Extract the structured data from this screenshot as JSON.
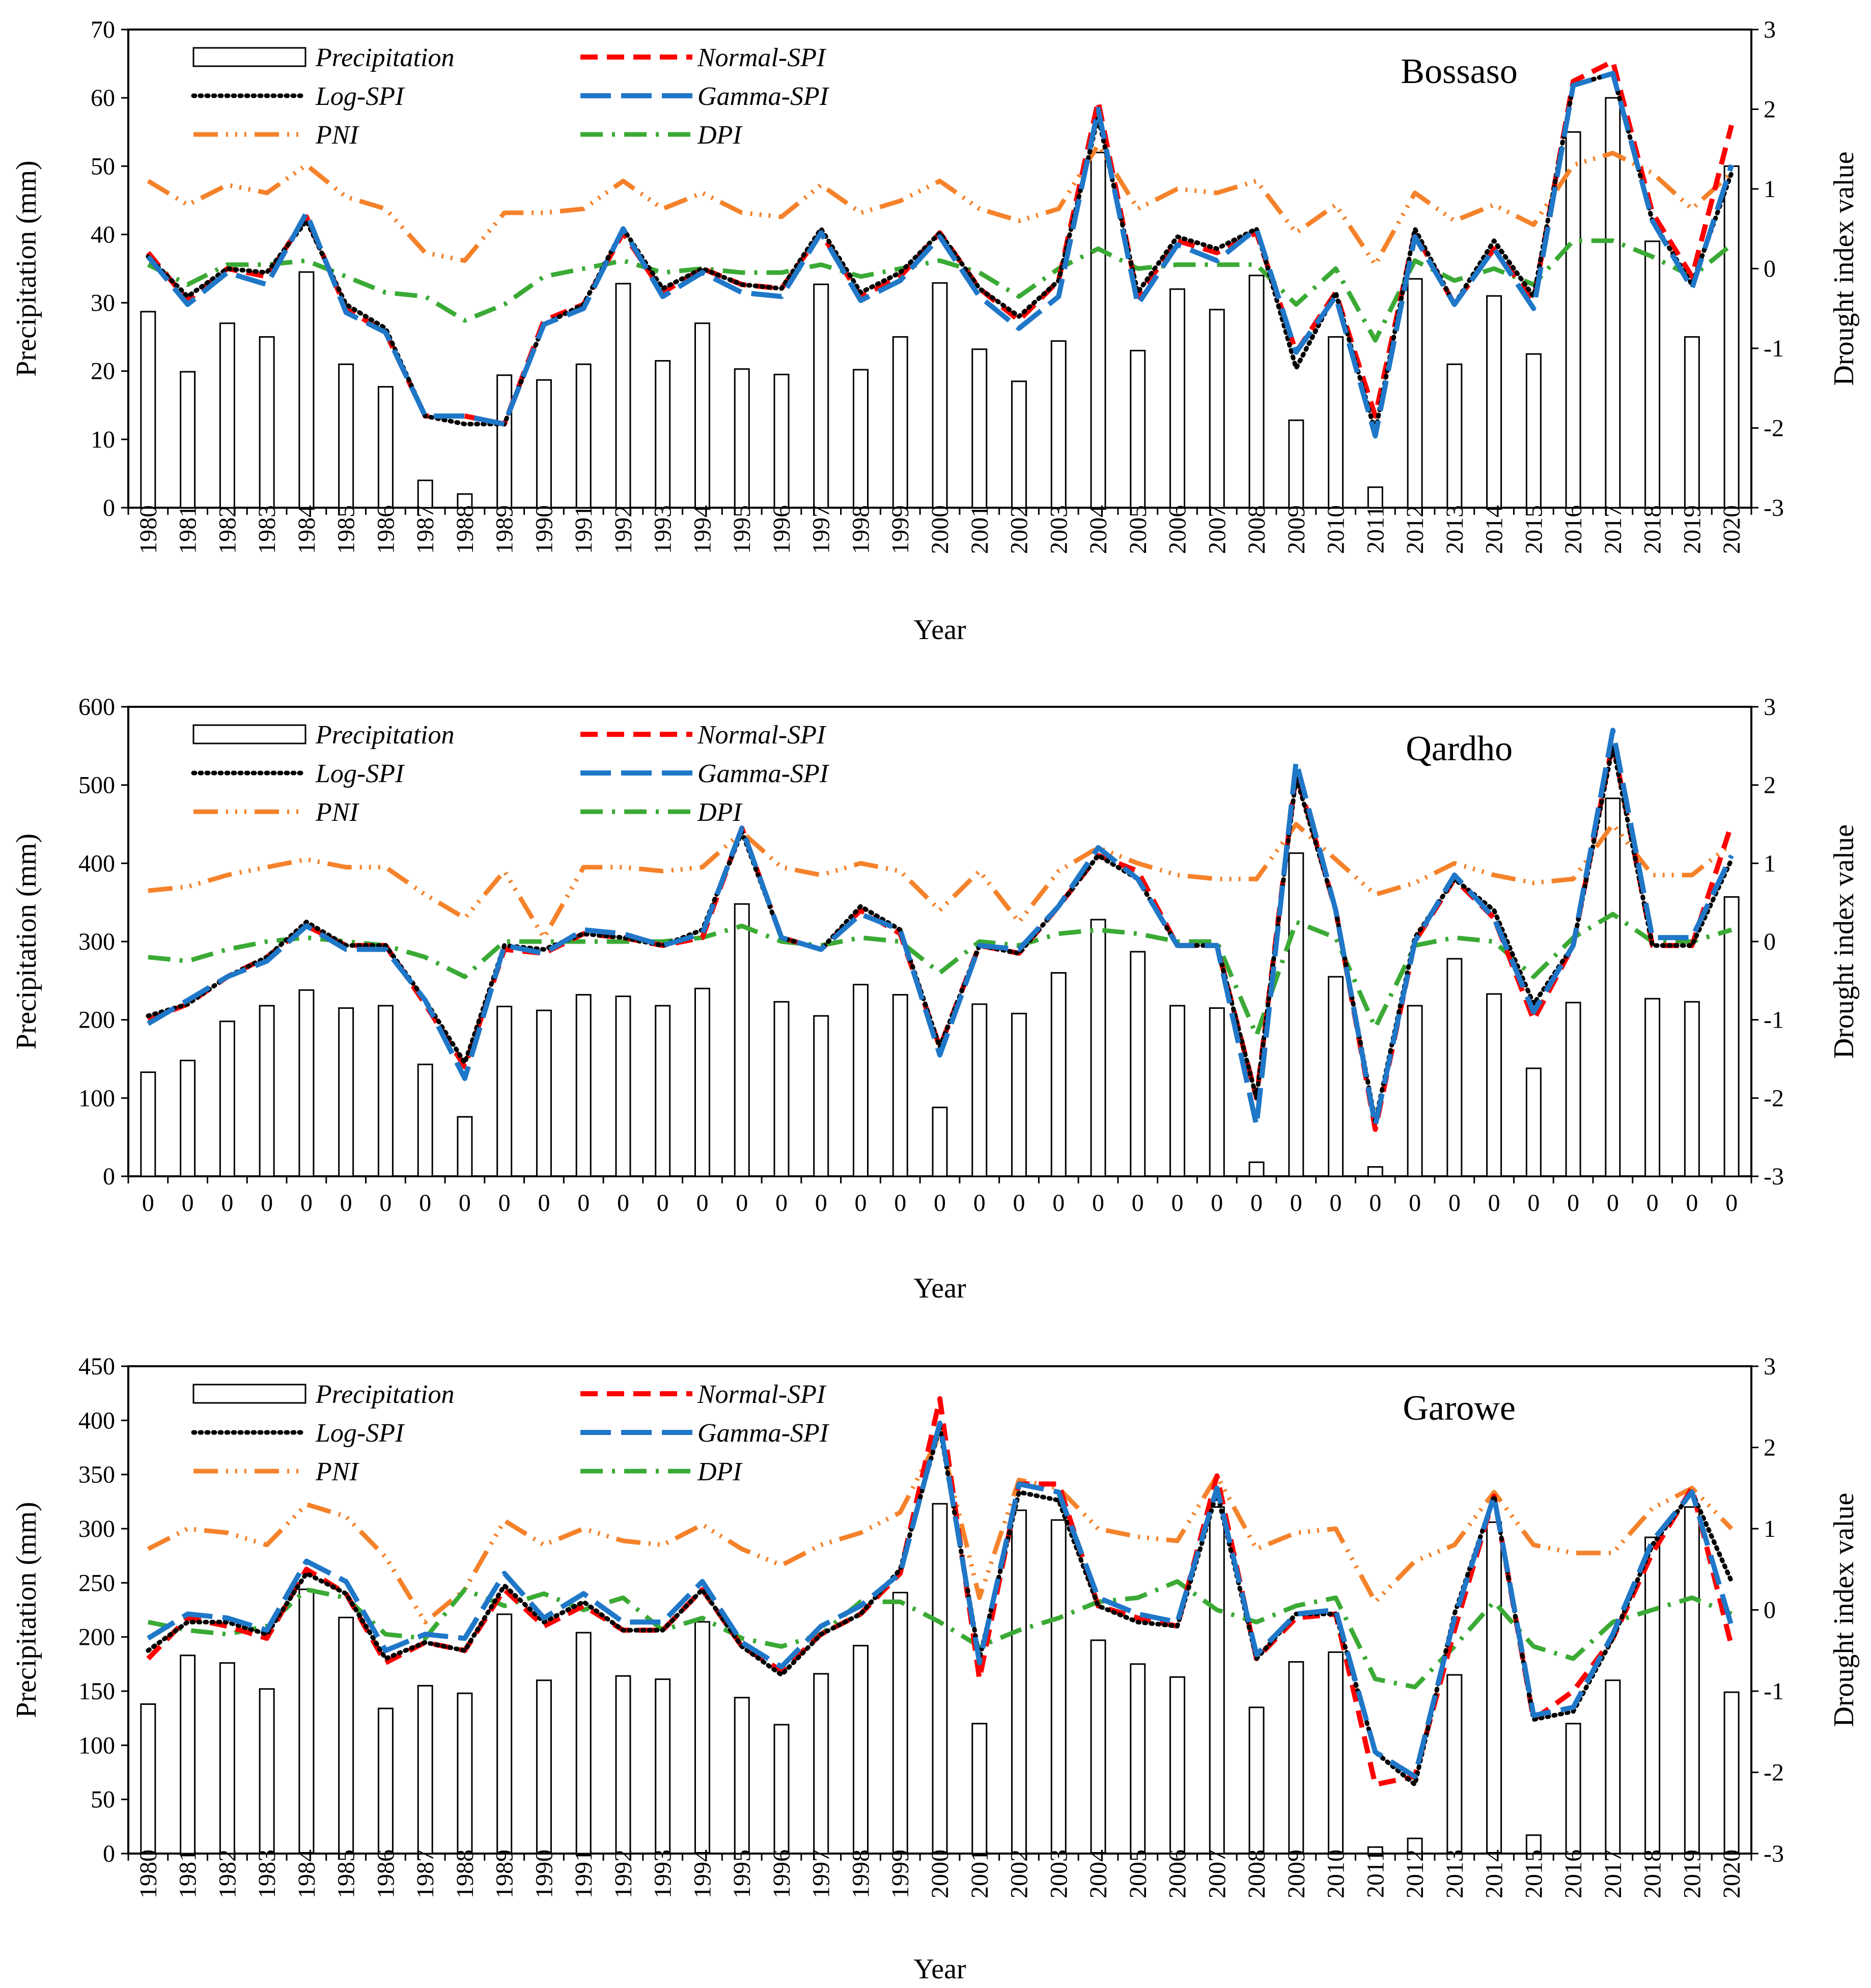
{
  "colors": {
    "Precipitation": "#000000",
    "Normal-SPI": "#ff0000",
    "Log-SPI": "#000000",
    "Gamma-SPI": "#1f77c8",
    "PNI": "#f5822a",
    "DPI": "#3aaa35"
  },
  "chart_data": [
    {
      "type": "bar",
      "station": "Bossaso",
      "xlabel": "Year",
      "ylabel": "Precipitation (mm)",
      "y2label": "Drought index value",
      "ylim": [
        0,
        70
      ],
      "yticks": [
        0,
        10,
        20,
        30,
        40,
        50,
        60,
        70
      ],
      "y2lim": [
        -3,
        3
      ],
      "y2ticks": [
        -3,
        -2,
        -1,
        0,
        1,
        2,
        3
      ],
      "legend": {
        "position": "top",
        "entries": [
          "Precipitation",
          "Normal-SPI",
          "Log-SPI",
          "Gamma-SPI",
          "PNI",
          "DPI"
        ]
      },
      "categories": [
        "1980",
        "1981",
        "1982",
        "1983",
        "1984",
        "1985",
        "1986",
        "1987",
        "1988",
        "1989",
        "1990",
        "1991",
        "1992",
        "1993",
        "1994",
        "1995",
        "1996",
        "1997",
        "1998",
        "1999",
        "2000",
        "2001",
        "2002",
        "2003",
        "2004",
        "2005",
        "2006",
        "2007",
        "2008",
        "2009",
        "2010",
        "2011",
        "2012",
        "2013",
        "2014",
        "2015",
        "2016",
        "2017",
        "2018",
        "2019",
        "2020"
      ],
      "bars": {
        "name": "Precipitation",
        "values": [
          28.7,
          19.9,
          27.0,
          25.0,
          34.5,
          21.0,
          17.7,
          4.0,
          2.0,
          19.4,
          18.7,
          21.0,
          32.8,
          21.5,
          27.0,
          20.3,
          19.5,
          32.7,
          20.2,
          25.0,
          32.9,
          23.2,
          18.5,
          24.4,
          52.0,
          23.0,
          32.0,
          29.0,
          34.0,
          12.8,
          25.0,
          3.0,
          33.5,
          21.0,
          31.0,
          22.5,
          55.0,
          60.0,
          39.0,
          25.0,
          50.0
        ]
      },
      "series": [
        {
          "name": "Normal-SPI",
          "values": [
            0.2,
            -0.4,
            0.0,
            -0.1,
            0.65,
            -0.5,
            -0.8,
            -1.85,
            -1.85,
            -1.95,
            -0.65,
            -0.45,
            0.45,
            -0.3,
            0.0,
            -0.2,
            -0.25,
            0.45,
            -0.35,
            -0.1,
            0.45,
            -0.25,
            -0.65,
            -0.15,
            2.1,
            -0.35,
            0.35,
            0.2,
            0.45,
            -1.05,
            -0.3,
            -1.85,
            0.45,
            -0.45,
            0.25,
            -0.4,
            2.35,
            2.6,
            0.7,
            -0.1,
            1.8
          ]
        },
        {
          "name": "Log-SPI",
          "values": [
            0.15,
            -0.35,
            0.0,
            -0.05,
            0.6,
            -0.45,
            -0.75,
            -1.85,
            -1.95,
            -1.95,
            -0.7,
            -0.45,
            0.5,
            -0.25,
            0.0,
            -0.2,
            -0.25,
            0.5,
            -0.3,
            -0.05,
            0.45,
            -0.25,
            -0.6,
            -0.15,
            1.9,
            -0.3,
            0.4,
            0.25,
            0.5,
            -1.25,
            -0.3,
            -2.05,
            0.5,
            -0.45,
            0.35,
            -0.35,
            2.3,
            2.45,
            0.6,
            -0.2,
            1.2
          ]
        },
        {
          "name": "Gamma-SPI",
          "values": [
            0.15,
            -0.45,
            -0.05,
            -0.2,
            0.7,
            -0.55,
            -0.8,
            -1.85,
            -1.85,
            -1.95,
            -0.7,
            -0.5,
            0.5,
            -0.35,
            -0.05,
            -0.3,
            -0.35,
            0.45,
            -0.4,
            -0.15,
            0.4,
            -0.35,
            -0.75,
            -0.35,
            2.0,
            -0.45,
            0.3,
            0.1,
            0.5,
            -1.05,
            -0.35,
            -2.1,
            0.4,
            -0.45,
            0.25,
            -0.5,
            2.3,
            2.45,
            0.6,
            -0.25,
            1.3
          ]
        },
        {
          "name": "PNI",
          "values": [
            1.1,
            0.8,
            1.05,
            0.95,
            1.3,
            0.9,
            0.75,
            0.2,
            0.1,
            0.7,
            0.7,
            0.75,
            1.1,
            0.75,
            0.95,
            0.7,
            0.65,
            1.05,
            0.7,
            0.85,
            1.1,
            0.75,
            0.6,
            0.75,
            1.55,
            0.75,
            1.0,
            0.95,
            1.1,
            0.45,
            0.8,
            0.05,
            0.95,
            0.6,
            0.8,
            0.55,
            1.3,
            1.45,
            1.2,
            0.75,
            1.2
          ]
        },
        {
          "name": "DPI",
          "values": [
            0.05,
            -0.2,
            0.05,
            0.05,
            0.1,
            -0.1,
            -0.3,
            -0.35,
            -0.65,
            -0.45,
            -0.1,
            0.0,
            0.1,
            -0.05,
            0.0,
            -0.05,
            -0.05,
            0.05,
            -0.1,
            0.0,
            0.1,
            -0.05,
            -0.35,
            0.0,
            0.25,
            0.0,
            0.05,
            0.05,
            0.05,
            -0.45,
            0.0,
            -0.9,
            0.1,
            -0.15,
            0.0,
            -0.2,
            0.35,
            0.35,
            0.15,
            -0.1,
            0.3
          ]
        }
      ]
    },
    {
      "type": "bar",
      "station": "Qardho",
      "xlabel": "Year",
      "ylabel": "Precipitation (mm)",
      "y2label": "Drought index value",
      "ylim": [
        0,
        600
      ],
      "yticks": [
        0,
        100,
        200,
        300,
        400,
        500,
        600
      ],
      "y2lim": [
        -3,
        3
      ],
      "y2ticks": [
        -3,
        -2,
        -1,
        0,
        1,
        2,
        3
      ],
      "legend": {
        "position": "top",
        "entries": [
          "Precipitation",
          "Normal-SPI",
          "Log-SPI",
          "Gamma-SPI",
          "PNI",
          "DPI"
        ]
      },
      "categories": [
        "0",
        "0",
        "0",
        "0",
        "0",
        "0",
        "0",
        "0",
        "0",
        "0",
        "0",
        "0",
        "0",
        "0",
        "0",
        "0",
        "0",
        "0",
        "0",
        "0",
        "0",
        "0",
        "0",
        "0",
        "0",
        "0",
        "0",
        "0",
        "0",
        "0",
        "0",
        "0",
        "0",
        "0",
        "0",
        "0",
        "0",
        "0",
        "0",
        "0",
        "0"
      ],
      "bars": {
        "name": "Precipitation",
        "values": [
          133,
          148,
          198,
          218,
          238,
          215,
          218,
          143,
          76,
          217,
          212,
          232,
          230,
          218,
          240,
          348,
          223,
          205,
          245,
          232,
          88,
          220,
          208,
          260,
          328,
          287,
          218,
          215,
          18,
          413,
          255,
          12,
          218,
          278,
          233,
          138,
          222,
          483,
          227,
          223,
          357
        ]
      },
      "series": [
        {
          "name": "Normal-SPI",
          "values": [
            -1.0,
            -0.8,
            -0.45,
            -0.2,
            0.2,
            -0.05,
            -0.05,
            -0.8,
            -1.6,
            -0.1,
            -0.15,
            0.1,
            0.05,
            -0.05,
            0.05,
            1.45,
            0.05,
            -0.1,
            0.4,
            0.1,
            -1.35,
            -0.05,
            -0.15,
            0.45,
            1.1,
            0.9,
            -0.05,
            -0.05,
            -2.0,
            2.15,
            0.4,
            -2.4,
            0.0,
            0.8,
            0.3,
            -1.0,
            -0.05,
            2.55,
            -0.05,
            -0.05,
            1.5
          ]
        },
        {
          "name": "Log-SPI",
          "values": [
            -0.95,
            -0.8,
            -0.45,
            -0.2,
            0.25,
            -0.05,
            -0.05,
            -0.75,
            -1.55,
            -0.05,
            -0.1,
            0.1,
            0.05,
            -0.05,
            0.15,
            1.4,
            0.05,
            -0.1,
            0.45,
            0.15,
            -1.35,
            -0.05,
            -0.15,
            0.45,
            1.1,
            0.8,
            -0.05,
            -0.05,
            -2.0,
            2.1,
            0.4,
            -2.3,
            0.05,
            0.8,
            0.4,
            -0.8,
            -0.05,
            2.5,
            -0.05,
            -0.05,
            1.05
          ]
        },
        {
          "name": "Gamma-SPI",
          "values": [
            -1.05,
            -0.75,
            -0.45,
            -0.25,
            0.2,
            -0.1,
            -0.1,
            -0.75,
            -1.75,
            -0.05,
            -0.15,
            0.15,
            0.1,
            -0.05,
            0.1,
            1.45,
            0.05,
            -0.1,
            0.35,
            0.15,
            -1.45,
            -0.05,
            -0.1,
            0.45,
            1.2,
            0.8,
            -0.05,
            -0.05,
            -2.35,
            2.3,
            0.4,
            -2.35,
            0.0,
            0.85,
            0.3,
            -0.9,
            -0.05,
            2.7,
            0.05,
            0.05,
            1.1
          ]
        },
        {
          "name": "PNI",
          "values": [
            0.65,
            0.7,
            0.85,
            0.95,
            1.05,
            0.95,
            0.95,
            0.6,
            0.3,
            0.9,
            0.05,
            0.95,
            0.95,
            0.9,
            0.95,
            1.4,
            0.95,
            0.85,
            1.0,
            0.9,
            0.4,
            0.9,
            0.25,
            0.9,
            1.2,
            1.0,
            0.85,
            0.8,
            0.8,
            1.5,
            1.05,
            0.6,
            0.75,
            1.0,
            0.85,
            0.75,
            0.8,
            1.5,
            0.85,
            0.85,
            1.25
          ]
        },
        {
          "name": "DPI",
          "values": [
            -0.2,
            -0.25,
            -0.1,
            0.0,
            0.05,
            0.0,
            -0.05,
            -0.2,
            -0.45,
            0.0,
            0.0,
            0.0,
            0.0,
            0.0,
            0.05,
            0.2,
            0.0,
            -0.05,
            0.05,
            0.0,
            -0.4,
            0.0,
            -0.05,
            0.1,
            0.15,
            0.1,
            0.0,
            0.0,
            -1.2,
            0.25,
            0.05,
            -1.1,
            -0.05,
            0.05,
            0.0,
            -0.45,
            0.05,
            0.35,
            0.0,
            0.0,
            0.15
          ]
        }
      ]
    },
    {
      "type": "bar",
      "station": "Garowe",
      "xlabel": "Year",
      "ylabel": "Precipitation (mm)",
      "y2label": "Drought index value",
      "ylim": [
        0,
        450
      ],
      "yticks": [
        0,
        50,
        100,
        150,
        200,
        250,
        300,
        350,
        400,
        450
      ],
      "y2lim": [
        -3,
        3
      ],
      "y2ticks": [
        -3,
        -2,
        -1,
        0,
        1,
        2,
        3
      ],
      "legend": {
        "position": "top",
        "entries": [
          "Precipitation",
          "Normal-SPI",
          "Log-SPI",
          "Gamma-SPI",
          "PNI",
          "DPI"
        ]
      },
      "categories": [
        "1980",
        "1981",
        "1982",
        "1983",
        "1984",
        "1985",
        "1986",
        "1987",
        "1988",
        "1989",
        "1990",
        "1991",
        "1992",
        "1993",
        "1994",
        "1995",
        "1996",
        "1997",
        "1998",
        "1999",
        "2000",
        "2001",
        "2002",
        "2003",
        "2004",
        "2005",
        "2006",
        "2007",
        "2008",
        "2009",
        "2010",
        "2011",
        "2012",
        "2013",
        "2014",
        "2015",
        "2016",
        "2017",
        "2018",
        "2019",
        "2020"
      ],
      "bars": {
        "name": "Precipitation",
        "values": [
          138,
          183,
          176,
          152,
          244,
          218,
          134,
          155,
          148,
          221,
          160,
          204,
          164,
          161,
          214,
          144,
          119,
          166,
          192,
          241,
          323,
          120,
          317,
          308,
          197,
          175,
          163,
          320,
          135,
          177,
          186,
          6,
          14,
          165,
          306,
          17,
          120,
          160,
          292,
          320,
          149
        ]
      },
      "series": [
        {
          "name": "Normal-SPI",
          "values": [
            -0.6,
            -0.1,
            -0.2,
            -0.35,
            0.5,
            0.2,
            -0.65,
            -0.4,
            -0.5,
            0.25,
            -0.2,
            0.05,
            -0.25,
            -0.25,
            0.25,
            -0.45,
            -0.75,
            -0.3,
            -0.05,
            0.45,
            2.6,
            -0.85,
            1.55,
            1.55,
            0.05,
            -0.1,
            -0.2,
            1.65,
            -0.6,
            -0.1,
            -0.05,
            -2.15,
            -2.05,
            -0.25,
            1.4,
            -1.35,
            -1.0,
            -0.35,
            0.7,
            1.5,
            -0.45
          ]
        },
        {
          "name": "Log-SPI",
          "values": [
            -0.5,
            -0.15,
            -0.15,
            -0.3,
            0.45,
            0.2,
            -0.6,
            -0.4,
            -0.5,
            0.3,
            -0.15,
            0.1,
            -0.25,
            -0.25,
            0.25,
            -0.45,
            -0.8,
            -0.3,
            -0.05,
            0.5,
            2.25,
            -0.6,
            1.45,
            1.35,
            0.05,
            -0.15,
            -0.2,
            1.45,
            -0.6,
            -0.05,
            -0.05,
            -1.75,
            -2.15,
            -0.05,
            1.4,
            -1.35,
            -1.25,
            -0.35,
            0.8,
            1.45,
            0.35
          ]
        },
        {
          "name": "Gamma-SPI",
          "values": [
            -0.35,
            -0.05,
            -0.1,
            -0.25,
            0.6,
            0.35,
            -0.5,
            -0.3,
            -0.35,
            0.45,
            -0.1,
            0.2,
            -0.15,
            -0.15,
            0.35,
            -0.4,
            -0.7,
            -0.2,
            0.05,
            0.45,
            2.3,
            -0.65,
            1.55,
            1.45,
            0.15,
            -0.05,
            -0.15,
            1.5,
            -0.55,
            -0.05,
            0.0,
            -1.75,
            -2.05,
            -0.1,
            1.4,
            -1.3,
            -1.2,
            -0.3,
            0.85,
            1.45,
            -0.2
          ]
        },
        {
          "name": "PNI",
          "values": [
            0.75,
            1.0,
            0.95,
            0.8,
            1.3,
            1.15,
            0.65,
            -0.15,
            0.25,
            1.1,
            0.8,
            1.0,
            0.85,
            0.8,
            1.05,
            0.75,
            0.55,
            0.8,
            0.95,
            1.2,
            2.15,
            0.15,
            1.6,
            1.5,
            1.0,
            0.9,
            0.85,
            1.65,
            0.75,
            0.95,
            1.0,
            0.1,
            0.6,
            0.8,
            1.45,
            0.8,
            0.7,
            0.7,
            1.25,
            1.5,
            1.0
          ]
        },
        {
          "name": "DPI",
          "values": [
            -0.15,
            -0.25,
            -0.3,
            -0.2,
            0.25,
            0.15,
            -0.3,
            -0.35,
            0.25,
            0.05,
            0.2,
            0.0,
            0.15,
            -0.25,
            -0.1,
            -0.35,
            -0.45,
            -0.3,
            0.1,
            0.1,
            -0.15,
            -0.45,
            -0.25,
            -0.1,
            0.1,
            0.15,
            0.35,
            0.0,
            -0.15,
            0.05,
            0.15,
            -0.85,
            -0.95,
            -0.45,
            0.1,
            -0.45,
            -0.6,
            -0.15,
            0.0,
            0.15,
            -0.05
          ]
        }
      ]
    }
  ]
}
